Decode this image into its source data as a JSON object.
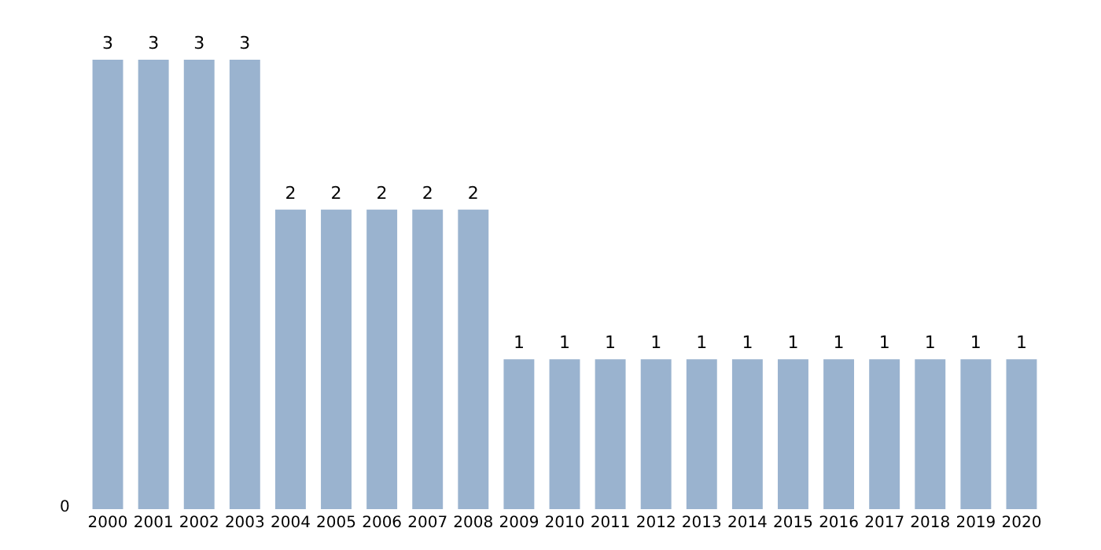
{
  "chart_data": {
    "type": "bar",
    "categories": [
      "2000",
      "2001",
      "2002",
      "2003",
      "2004",
      "2005",
      "2006",
      "2007",
      "2008",
      "2009",
      "2010",
      "2011",
      "2012",
      "2013",
      "2014",
      "2015",
      "2016",
      "2017",
      "2018",
      "2019",
      "2020"
    ],
    "values": [
      3,
      3,
      3,
      3,
      2,
      2,
      2,
      2,
      2,
      1,
      1,
      1,
      1,
      1,
      1,
      1,
      1,
      1,
      1,
      1,
      1
    ],
    "color": "#9ab3cf",
    "data_labels": true,
    "grid": false,
    "annotations": [
      "0"
    ]
  }
}
